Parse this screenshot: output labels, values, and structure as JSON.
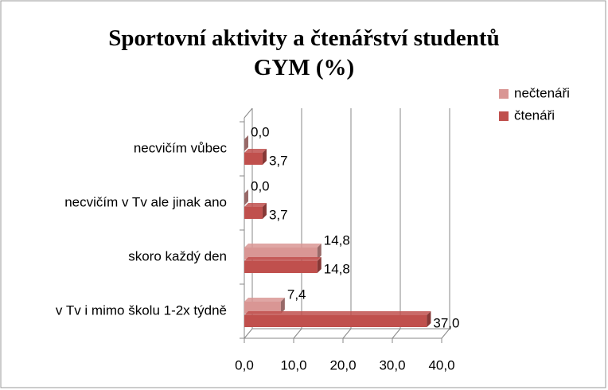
{
  "chart_data": {
    "type": "bar",
    "orientation": "horizontal",
    "title": "Sportovní aktivity a čtenářství studentů GYM (%)",
    "categories": [
      "v Tv i mimo školu 1-2x týdně",
      "skoro každý den",
      "necvičím v Tv ale jinak ano",
      "necvičím vůbec"
    ],
    "series": [
      {
        "name": "nečtenáři",
        "color": "#d99694",
        "values": [
          7.4,
          14.8,
          0.0,
          0.0
        ],
        "value_labels": [
          "7,4",
          "14,8",
          "0,0",
          "0,0"
        ]
      },
      {
        "name": "čtenáři",
        "color": "#c0504d",
        "values": [
          37.0,
          14.8,
          3.7,
          3.7
        ],
        "value_labels": [
          "37,0",
          "14,8",
          "3,7",
          "3,7"
        ]
      }
    ],
    "xlim": [
      0,
      40
    ],
    "xticks": [
      {
        "value": 0,
        "label": "0,0"
      },
      {
        "value": 10,
        "label": "10,0"
      },
      {
        "value": 20,
        "label": "20,0"
      },
      {
        "value": 30,
        "label": "30,0"
      },
      {
        "value": 40,
        "label": "40,0"
      }
    ],
    "grid": true,
    "legend": "top-right"
  }
}
